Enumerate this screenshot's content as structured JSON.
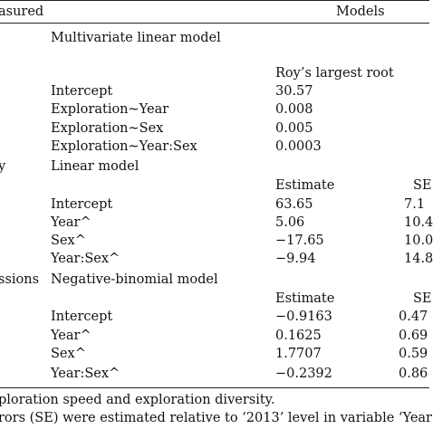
{
  "header": {
    "col_measured": "asured",
    "col_models": "Models"
  },
  "mlm": {
    "title": "Multivariate linear model",
    "stat_header": "Roy’s largest root",
    "rows": [
      {
        "term": "Intercept",
        "value": "30.57"
      },
      {
        "term": "Exploration~Year",
        "value": "0.008"
      },
      {
        "term": "Exploration~Sex",
        "value": "0.005"
      },
      {
        "term": "Exploration~Year:Sex",
        "value": "0.0003"
      }
    ]
  },
  "lm": {
    "measure_fragment": "y",
    "title": "Linear model",
    "estimate_header": "Estimate",
    "se_header": "SE",
    "rows": [
      {
        "term": "Intercept",
        "estimate": "63.65",
        "se": "7.1"
      },
      {
        "term": "Year^",
        "estimate": "5.06",
        "se": "10.4"
      },
      {
        "term": "Sex^",
        "estimate": "−17.65",
        "se": "10.0"
      },
      {
        "term": "Year:Sex^",
        "estimate": "−9.94",
        "se": "14.8"
      }
    ]
  },
  "nb": {
    "measure_fragment": "ssions",
    "title": "Negative-binomial model",
    "estimate_header": "Estimate",
    "se_header": "SE",
    "rows": [
      {
        "term": "Intercept",
        "estimate": "−0.9163",
        "se": "0.47"
      },
      {
        "term": "Year^",
        "estimate": "0.1625",
        "se": "0.69"
      },
      {
        "term": "Sex^",
        "estimate": "1.7707",
        "se": "0.59"
      },
      {
        "term": "Year:Sex^",
        "estimate": "−0.2392",
        "se": "0.86"
      }
    ]
  },
  "footnotes": [
    "ploration speed and exploration diversity.",
    "rors (SE) were estimated relative to ‘2013’ level in variable ‘Year"
  ]
}
